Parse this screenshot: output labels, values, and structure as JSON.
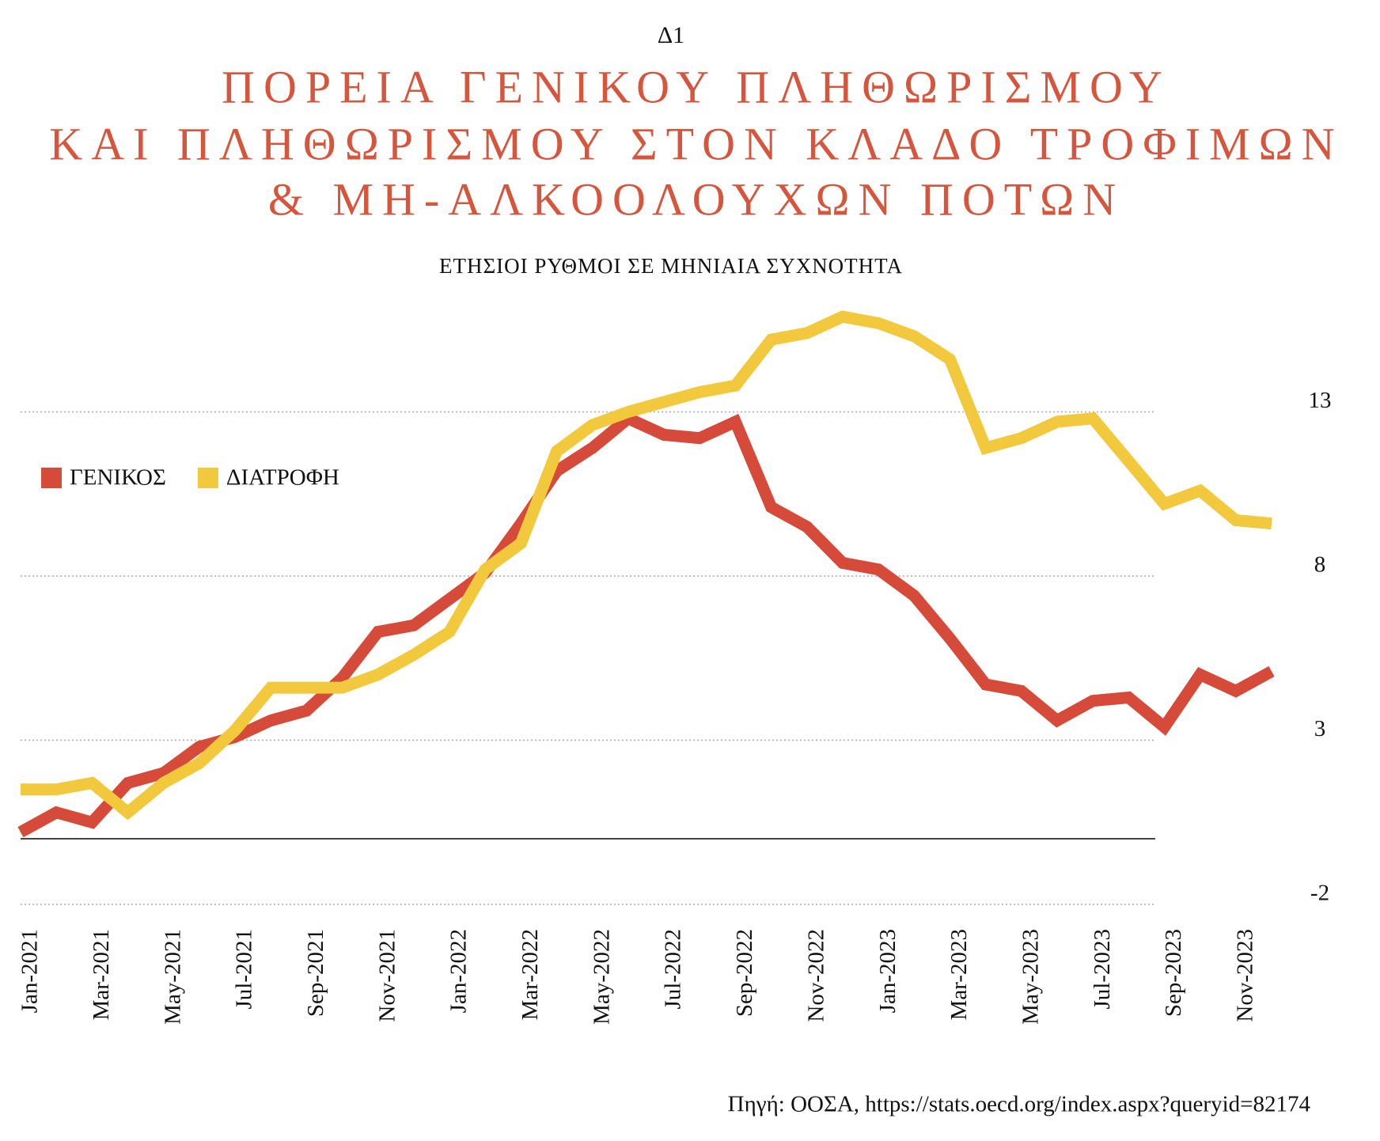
{
  "chart_data": {
    "type": "line",
    "label": "Δ1",
    "title": [
      "ΠΟΡΕΙΑ ΓΕΝΙΚΟΥ ΠΛΗΘΩΡΙΣΜΟΥ",
      "ΚΑΙ ΠΛΗΘΩΡΙΣΜΟΥ ΣΤΟΝ ΚΛΑΔΟ ΤΡΟΦΙΜΩΝ",
      "& ΜΗ-ΑΛΚΟΟΛΟΥΧΩΝ ΠΟΤΩΝ"
    ],
    "subtitle": "ΕΤΗΣΙΟΙ ΡΥΘΜΟΙ ΣΕ ΜΗΝΙΑΙΑ ΣΥΧΝΟΤΗΤΑ",
    "source": "Πηγή: ΟΟΣΑ, https://stats.oecd.org/index.aspx?queryid=82174",
    "categories": [
      "Jan-2021",
      null,
      "Mar-2021",
      null,
      "May-2021",
      null,
      "Jul-2021",
      null,
      "Sep-2021",
      null,
      "Nov-2021",
      null,
      "Jan-2022",
      null,
      "Mar-2022",
      null,
      "May-2022",
      null,
      "Jul-2022",
      null,
      "Sep-2022",
      null,
      "Nov-2022",
      null,
      "Jan-2023",
      null,
      "Mar-2023",
      null,
      "May-2023",
      null,
      "Jul-2023",
      null,
      "Sep-2023",
      null,
      "Nov-2023",
      null
    ],
    "series": [
      {
        "name": "ΓΕΝΙΚΟΣ",
        "color": "#d64a3a",
        "values": [
          0.2,
          0.8,
          0.5,
          1.7,
          2.0,
          2.8,
          3.1,
          3.6,
          3.9,
          4.9,
          6.3,
          6.5,
          7.3,
          8.1,
          9.6,
          11.2,
          11.9,
          12.8,
          12.3,
          12.2,
          12.7,
          10.1,
          9.5,
          8.4,
          8.2,
          7.4,
          6.1,
          4.7,
          4.5,
          3.6,
          4.2,
          4.3,
          3.4,
          5.0,
          4.5,
          5.1
        ]
      },
      {
        "name": "ΔΙΑΤΡΟΦΗ",
        "color": "#f2c83c",
        "values": [
          1.5,
          1.5,
          1.7,
          0.8,
          1.7,
          2.3,
          3.3,
          4.6,
          4.6,
          4.6,
          5.0,
          5.6,
          6.3,
          8.2,
          9.0,
          11.8,
          12.6,
          13.0,
          13.3,
          13.6,
          13.8,
          15.2,
          15.4,
          15.9,
          15.7,
          15.3,
          14.6,
          11.9,
          12.2,
          12.7,
          12.8,
          11.5,
          10.2,
          10.6,
          9.7,
          9.6
        ]
      }
    ],
    "ylim": [
      -2,
      16
    ],
    "yticks": [
      -2,
      3,
      8,
      13
    ],
    "grid": true,
    "legend": "left"
  }
}
